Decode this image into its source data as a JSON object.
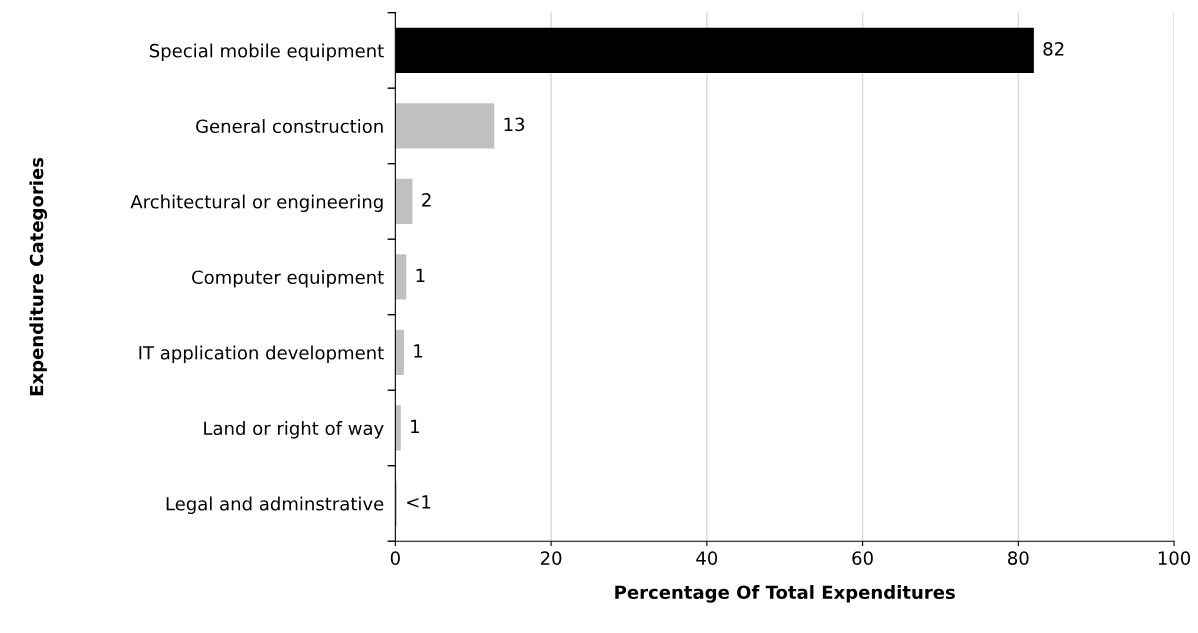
{
  "chart_data": {
    "type": "bar",
    "orientation": "horizontal",
    "xlabel": "Percentage Of Total Expenditures",
    "ylabel": "Expenditure Categories",
    "categories": [
      "Special mobile equipment",
      "General construction",
      "Architectural or engineering",
      "Computer equipment",
      "IT application development",
      "Land or right of way",
      "Legal and adminstrative"
    ],
    "values": [
      82,
      12.7,
      2.2,
      1.4,
      1.1,
      0.7,
      0.2
    ],
    "colors": [
      "#000000",
      "#c0c0c0",
      "#c0c0c0",
      "#c0c0c0",
      "#c0c0c0",
      "#c0c0c0",
      "#c0c0c0"
    ],
    "value_labels": [
      "82",
      "13",
      "2",
      "1",
      "1",
      "1",
      "<1"
    ],
    "xlim": [
      0,
      100
    ],
    "xticks": [
      0,
      20,
      40,
      60,
      80,
      100
    ],
    "grid": "x",
    "legend": false
  }
}
